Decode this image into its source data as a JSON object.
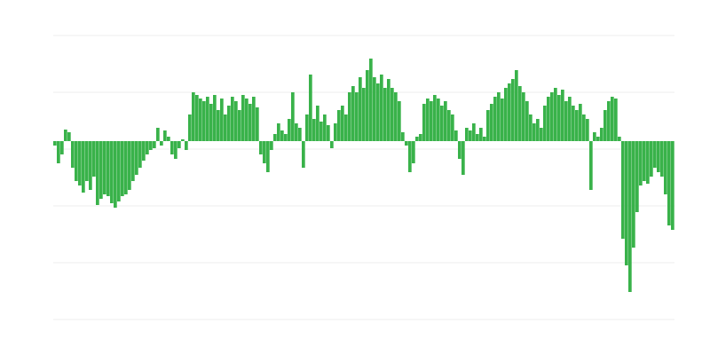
{
  "chart_data": {
    "type": "bar",
    "title": "",
    "xlabel": "",
    "ylabel": "",
    "ylim": [
      -201,
      119
    ],
    "grid": true,
    "gridlines": [
      119,
      55,
      -9,
      -73,
      -137,
      -201
    ],
    "bar_color": "#39b24a",
    "grid_color": "#ececec",
    "values": [
      -5,
      -25,
      -15,
      13,
      10,
      -30,
      -45,
      -50,
      -58,
      -45,
      -55,
      -40,
      -72,
      -65,
      -60,
      -62,
      -70,
      -75,
      -68,
      -62,
      -60,
      -55,
      -45,
      -38,
      -30,
      -22,
      -15,
      -10,
      -8,
      15,
      -5,
      12,
      5,
      -15,
      -20,
      -8,
      2,
      -10,
      30,
      55,
      52,
      48,
      45,
      50,
      42,
      52,
      35,
      48,
      30,
      40,
      50,
      45,
      35,
      52,
      48,
      42,
      50,
      38,
      -15,
      -25,
      -35,
      -10,
      8,
      20,
      12,
      8,
      25,
      55,
      20,
      15,
      -30,
      30,
      75,
      25,
      40,
      22,
      30,
      18,
      -8,
      20,
      35,
      40,
      30,
      55,
      62,
      55,
      72,
      60,
      80,
      93,
      72,
      65,
      75,
      60,
      70,
      60,
      55,
      45,
      10,
      -5,
      -35,
      -25,
      5,
      8,
      42,
      48,
      45,
      52,
      48,
      40,
      45,
      35,
      30,
      12,
      -20,
      -38,
      15,
      12,
      20,
      8,
      15,
      5,
      35,
      42,
      50,
      55,
      48,
      60,
      65,
      70,
      80,
      62,
      55,
      45,
      30,
      20,
      25,
      15,
      40,
      50,
      55,
      60,
      52,
      58,
      45,
      50,
      40,
      35,
      42,
      30,
      25,
      -55,
      10,
      5,
      15,
      35,
      45,
      50,
      48,
      5,
      -110,
      -140,
      -170,
      -120,
      -80,
      -50,
      -45,
      -48,
      -40,
      -30,
      -35,
      -40,
      -60,
      -95,
      -100
    ]
  }
}
